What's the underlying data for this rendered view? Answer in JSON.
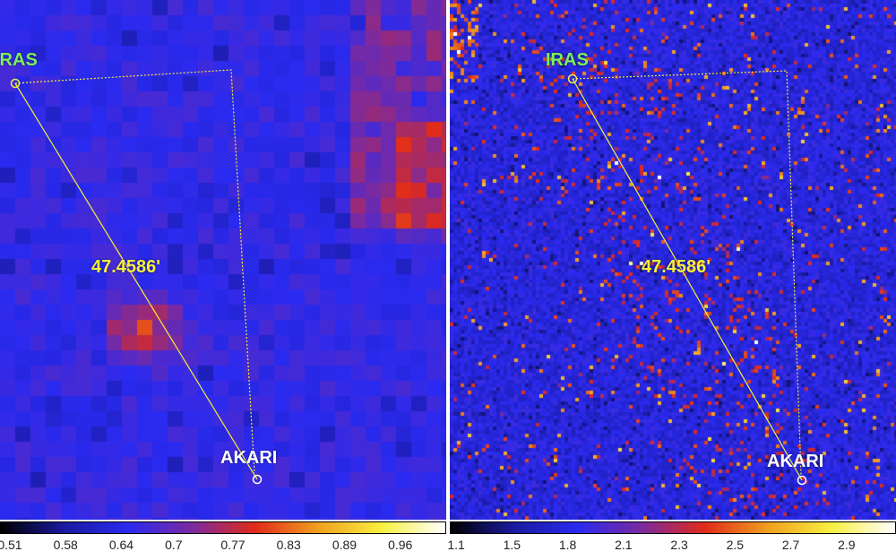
{
  "panels": [
    {
      "id": "left",
      "iras_label": "IRAS",
      "akari_label": "AKARI",
      "distance_label": "47.4586'",
      "colorbar_ticks": [
        "0.51",
        "0.58",
        "0.64",
        "0.7",
        "0.77",
        "0.83",
        "0.89",
        "0.96"
      ]
    },
    {
      "id": "right",
      "iras_label": "IRAS",
      "akari_label": "AKARI",
      "distance_label": "47.4586'",
      "colorbar_ticks": [
        "1.1",
        "1.5",
        "1.8",
        "2.1",
        "2.3",
        "2.5",
        "2.7",
        "2.9"
      ]
    }
  ],
  "colors": {
    "iras_label": "#7CF05A",
    "akari_label": "#ffffff",
    "distance_label": "#f5f03a",
    "connector_line": "#f5f03a",
    "colormap": [
      "#000000",
      "#1a1aa0",
      "#2a2af0",
      "#7a2aa0",
      "#e02a1a",
      "#f0a020",
      "#f8f040",
      "#ffffff"
    ]
  }
}
